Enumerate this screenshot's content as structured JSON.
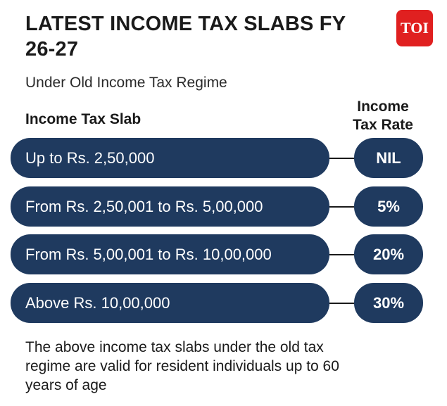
{
  "title": "LATEST INCOME TAX SLABS FY 26-27",
  "logo_text": "TOI",
  "subtitle": "Under Old Income Tax Regime",
  "headers": {
    "slab": "Income Tax Slab",
    "rate": "Income Tax Rate"
  },
  "rows": [
    {
      "slab": "Up to Rs. 2,50,000",
      "rate": "NIL"
    },
    {
      "slab": "From Rs. 2,50,001 to Rs. 5,00,000",
      "rate": "5%"
    },
    {
      "slab": "From Rs. 5,00,001 to Rs. 10,00,000",
      "rate": "20%"
    },
    {
      "slab": "Above Rs. 10,00,000",
      "rate": "30%"
    }
  ],
  "footer": "The above income tax slabs under the old tax regime are valid for resident individuals up to 60 years of age",
  "colors": {
    "pill": "#1f3a5f",
    "logo": "#e02020"
  }
}
